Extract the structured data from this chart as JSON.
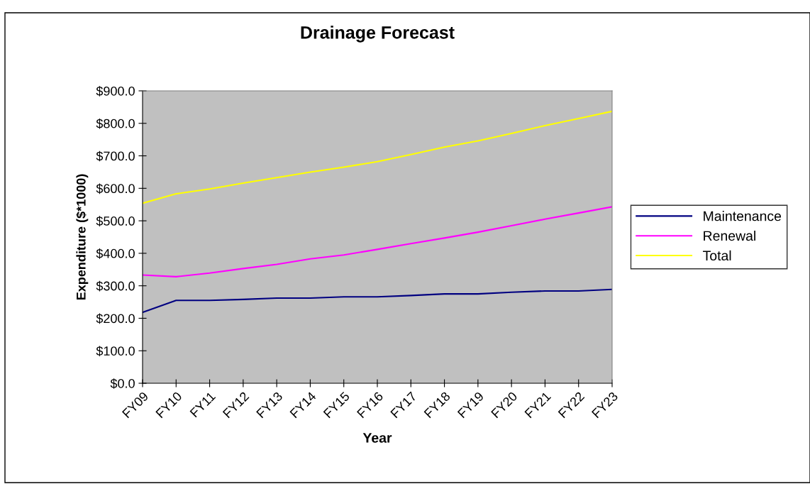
{
  "chart_data": {
    "type": "line",
    "title": "Drainage Forecast",
    "xlabel": "Year",
    "ylabel": "Expenditure ($*1000)",
    "categories": [
      "FY09",
      "FY10",
      "FY11",
      "FY12",
      "FY13",
      "FY14",
      "FY15",
      "FY16",
      "FY17",
      "FY18",
      "FY19",
      "FY20",
      "FY21",
      "FY22",
      "FY23"
    ],
    "series": [
      {
        "name": "Maintenance",
        "color": "#000080",
        "values": [
          218,
          255,
          255,
          258,
          262,
          262,
          266,
          266,
          270,
          275,
          275,
          280,
          284,
          284,
          289
        ]
      },
      {
        "name": "Renewal",
        "color": "#ff00ff",
        "values": [
          333,
          328,
          339,
          353,
          366,
          383,
          395,
          412,
          430,
          447,
          465,
          485,
          505,
          524,
          543
        ]
      },
      {
        "name": "Total",
        "color": "#ffff00",
        "values": [
          554,
          583,
          598,
          616,
          633,
          650,
          665,
          682,
          704,
          727,
          746,
          769,
          793,
          815,
          837
        ]
      }
    ],
    "ylim": [
      0,
      900
    ],
    "yticks": [
      {
        "value": 0,
        "label": "$0.0"
      },
      {
        "value": 100,
        "label": "$100.0"
      },
      {
        "value": 200,
        "label": "$200.0"
      },
      {
        "value": 300,
        "label": "$300.0"
      },
      {
        "value": 400,
        "label": "$400.0"
      },
      {
        "value": 500,
        "label": "$500.0"
      },
      {
        "value": 600,
        "label": "$600.0"
      },
      {
        "value": 700,
        "label": "$700.0"
      },
      {
        "value": 800,
        "label": "$800.0"
      },
      {
        "value": 900,
        "label": "$900.0"
      }
    ],
    "grid": false,
    "legend": "right",
    "marker": "none",
    "line_style": "solid"
  }
}
